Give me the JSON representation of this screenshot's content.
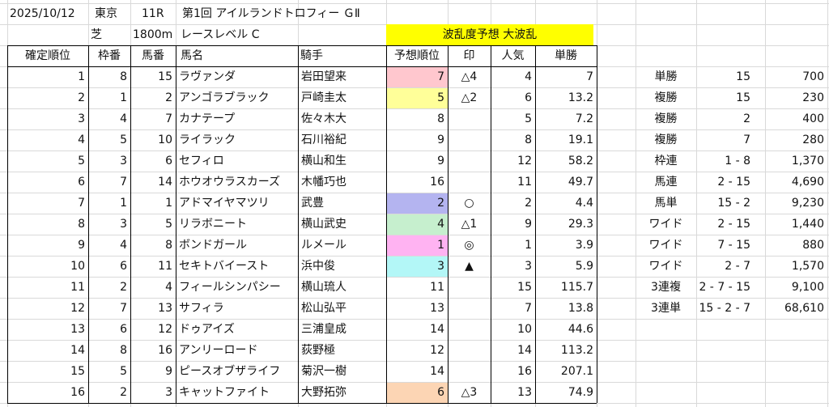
{
  "meta": {
    "date": "2025/10/12",
    "venue": "東京",
    "race_no": "11R",
    "race_name": "第1回 アイルランドトロフィー ＧⅡ",
    "surface": "芝",
    "distance": "1800m",
    "race_level": "レースレベル C",
    "forecast_label": "波乱度予想 大波乱"
  },
  "headers": [
    "確定順位",
    "枠番",
    "馬番",
    "馬名",
    "騎手",
    "予想順位",
    "印",
    "人気",
    "単勝"
  ],
  "rows": [
    {
      "rank": "1",
      "waku": "8",
      "uma": "15",
      "horse": "ラヴァンダ",
      "jockey": "岩田望来",
      "pred": "7",
      "mark": "△4",
      "pop": "4",
      "odds": "7",
      "color": "#ffc7ce"
    },
    {
      "rank": "2",
      "waku": "1",
      "uma": "2",
      "horse": "アンゴラブラック",
      "jockey": "戸崎圭太",
      "pred": "5",
      "mark": "△2",
      "pop": "6",
      "odds": "13.2",
      "color": "#ffff99"
    },
    {
      "rank": "3",
      "waku": "4",
      "uma": "7",
      "horse": "カナテープ",
      "jockey": "佐々木大",
      "pred": "8",
      "mark": "",
      "pop": "5",
      "odds": "7.2",
      "color": ""
    },
    {
      "rank": "4",
      "waku": "5",
      "uma": "10",
      "horse": "ライラック",
      "jockey": "石川裕紀",
      "pred": "9",
      "mark": "",
      "pop": "8",
      "odds": "19.1",
      "color": ""
    },
    {
      "rank": "5",
      "waku": "3",
      "uma": "6",
      "horse": "セフィロ",
      "jockey": "横山和生",
      "pred": "9",
      "mark": "",
      "pop": "12",
      "odds": "58.2",
      "color": ""
    },
    {
      "rank": "6",
      "waku": "7",
      "uma": "14",
      "horse": "ホウオウラスカーズ",
      "jockey": "木幡巧也",
      "pred": "16",
      "mark": "",
      "pop": "11",
      "odds": "49.7",
      "color": ""
    },
    {
      "rank": "7",
      "waku": "1",
      "uma": "1",
      "horse": "アドマイヤマツリ",
      "jockey": "武豊",
      "pred": "2",
      "mark": "○",
      "pop": "2",
      "odds": "4.4",
      "color": "#b4b4f0"
    },
    {
      "rank": "8",
      "waku": "3",
      "uma": "5",
      "horse": "リラボニート",
      "jockey": "横山武史",
      "pred": "4",
      "mark": "△1",
      "pop": "9",
      "odds": "29.3",
      "color": "#c6efce"
    },
    {
      "rank": "9",
      "waku": "4",
      "uma": "8",
      "horse": "ボンドガール",
      "jockey": "ルメール",
      "pred": "1",
      "mark": "◎",
      "pop": "1",
      "odds": "3.9",
      "color": "#ffb3f2"
    },
    {
      "rank": "10",
      "waku": "6",
      "uma": "11",
      "horse": "セキトバイースト",
      "jockey": "浜中俊",
      "pred": "3",
      "mark": "▲",
      "pop": "3",
      "odds": "5.9",
      "color": "#b3f7f7"
    },
    {
      "rank": "11",
      "waku": "2",
      "uma": "4",
      "horse": "フィールシンパシー",
      "jockey": "横山琉人",
      "pred": "11",
      "mark": "",
      "pop": "15",
      "odds": "115.7",
      "color": ""
    },
    {
      "rank": "12",
      "waku": "7",
      "uma": "13",
      "horse": "サフィラ",
      "jockey": "松山弘平",
      "pred": "13",
      "mark": "",
      "pop": "7",
      "odds": "13.8",
      "color": ""
    },
    {
      "rank": "13",
      "waku": "6",
      "uma": "12",
      "horse": "ドゥアイズ",
      "jockey": "三浦皇成",
      "pred": "14",
      "mark": "",
      "pop": "10",
      "odds": "44.6",
      "color": ""
    },
    {
      "rank": "14",
      "waku": "8",
      "uma": "16",
      "horse": "アンリーロード",
      "jockey": "荻野極",
      "pred": "12",
      "mark": "",
      "pop": "14",
      "odds": "113.2",
      "color": ""
    },
    {
      "rank": "15",
      "waku": "5",
      "uma": "9",
      "horse": "ピースオブザライフ",
      "jockey": "菊沢一樹",
      "pred": "14",
      "mark": "",
      "pop": "16",
      "odds": "207.1",
      "color": ""
    },
    {
      "rank": "16",
      "waku": "2",
      "uma": "3",
      "horse": "キャットファイト",
      "jockey": "大野拓弥",
      "pred": "6",
      "mark": "△3",
      "pop": "13",
      "odds": "74.9",
      "color": "#fcd5b4"
    }
  ],
  "payouts": [
    {
      "type": "単勝",
      "combo": "15",
      "amount": "700"
    },
    {
      "type": "複勝",
      "combo": "15",
      "amount": "230"
    },
    {
      "type": "複勝",
      "combo": "2",
      "amount": "400"
    },
    {
      "type": "複勝",
      "combo": "7",
      "amount": "280"
    },
    {
      "type": "枠連",
      "combo": "1 - 8",
      "amount": "1,370"
    },
    {
      "type": "馬連",
      "combo": "2 - 15",
      "amount": "4,690"
    },
    {
      "type": "馬単",
      "combo": "15 - 2",
      "amount": "9,230"
    },
    {
      "type": "ワイド",
      "combo": "2 - 15",
      "amount": "1,440"
    },
    {
      "type": "ワイド",
      "combo": "7 - 15",
      "amount": "880"
    },
    {
      "type": "ワイド",
      "combo": "2 - 7",
      "amount": "1,570"
    },
    {
      "type": "3連複",
      "combo": "2 - 7 - 15",
      "amount": "9,100"
    },
    {
      "type": "3連単",
      "combo": "15 - 2 - 7",
      "amount": "68,610"
    }
  ],
  "colors": {
    "forecast_bg": "#ffff00",
    "grid": "#d9d9d9",
    "border": "#000000"
  }
}
